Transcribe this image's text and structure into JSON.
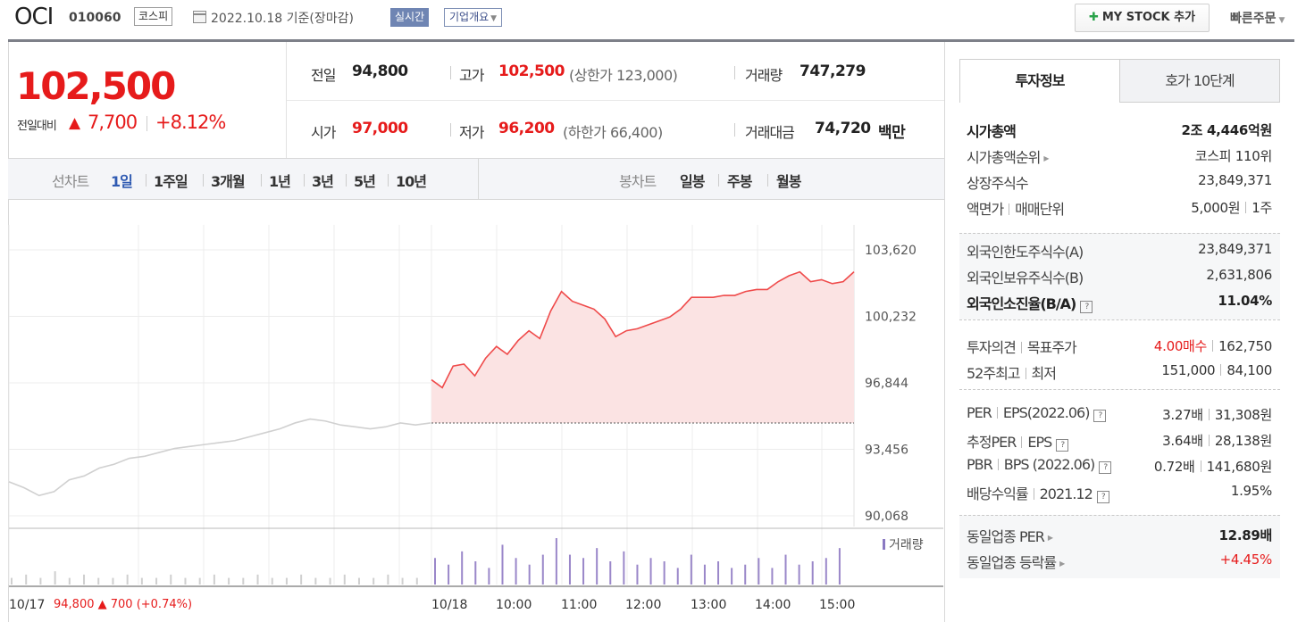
{
  "header": {
    "name": "OCI",
    "code": "010060",
    "market": "코스피",
    "date_text": "2022.10.18  기준(장마감)",
    "realtime_label": "실시간",
    "company_label": "기업개요",
    "mystock_label": "MY STOCK 추가",
    "quick_order_label": "빠른주문"
  },
  "price": {
    "current": "102,500",
    "change_label": "전일대비",
    "change_value": "7,700",
    "change_pct": "+8.12%"
  },
  "quotes": {
    "prev_close_label": "전일",
    "prev_close": "94,800",
    "high_label": "고가",
    "high": "102,500",
    "upper_limit": "(상한가 123,000)",
    "volume_label": "거래량",
    "volume": "747,279",
    "open_label": "시가",
    "open": "97,000",
    "low_label": "저가",
    "low": "96,200",
    "lower_limit": "(하한가 66,400)",
    "amount_label": "거래대금",
    "amount": "74,720",
    "amount_unit": "백만"
  },
  "chart_tabs": {
    "line_label": "선차트",
    "line_tabs": [
      "1일",
      "1주일",
      "3개월",
      "1년",
      "3년",
      "5년",
      "10년"
    ],
    "active_tab": "1일",
    "candle_label": "봉차트",
    "candle_tabs": [
      "일봉",
      "주봉",
      "월봉"
    ]
  },
  "chart_data": {
    "type": "line",
    "yticks": [
      "103,620",
      "100,232",
      "96,844",
      "93,456",
      "90,068"
    ],
    "ylim": [
      90068,
      103620
    ],
    "x_labels": [
      "10/17",
      "10/18",
      "10:00",
      "11:00",
      "12:00",
      "13:00",
      "14:00",
      "15:00"
    ],
    "prev_day_footer": "94,800 ▲ 700 (+0.74%)",
    "volume_legend": "거래량",
    "prev_close_line": 94800,
    "series": [
      {
        "name": "10/17",
        "values": [
          91800,
          91500,
          91100,
          91300,
          91900,
          92100,
          92500,
          92700,
          93000,
          93100,
          93300,
          93500,
          93600,
          93700,
          93800,
          93900,
          94100,
          94300,
          94500,
          94800,
          95000,
          94900,
          94700,
          94600,
          94500,
          94600,
          94800,
          94700,
          94800
        ]
      },
      {
        "name": "10/18",
        "values": [
          97000,
          96600,
          97700,
          97800,
          97200,
          98100,
          98700,
          98300,
          99000,
          99500,
          99100,
          100500,
          101500,
          101000,
          100800,
          100600,
          100100,
          99200,
          99500,
          99600,
          99800,
          100000,
          100200,
          100600,
          101200,
          101200,
          101200,
          101300,
          101300,
          101500,
          101600,
          101600,
          102000,
          102300,
          102500,
          102000,
          102100,
          101900,
          102000,
          102500
        ]
      }
    ],
    "volume": [
      2,
      3,
      2,
      4,
      2,
      3,
      2,
      2,
      3,
      2,
      2,
      3,
      2,
      2,
      3,
      2,
      2,
      3,
      2,
      2,
      3,
      2,
      2,
      3,
      2,
      2,
      3,
      2,
      2,
      8,
      6,
      10,
      7,
      5,
      12,
      8,
      6,
      9,
      14,
      9,
      8,
      11,
      7,
      10,
      6,
      8,
      7,
      5,
      9,
      6,
      7,
      5,
      6,
      8,
      5,
      9,
      6,
      7,
      8,
      11
    ]
  },
  "right_panel": {
    "tab_active": "투자정보",
    "tab_inactive": "호가 10단계",
    "rows1": [
      {
        "label": "시가총액",
        "value": "2조 4,446억원",
        "bold": true
      },
      {
        "label": "시가총액순위",
        "value": "코스피 110위"
      },
      {
        "label": "상장주식수",
        "value": "23,849,371"
      },
      {
        "label": "액면가",
        "label2": "매매단위",
        "value": "5,000원",
        "value2": "1주"
      }
    ],
    "rows2": [
      {
        "label": "외국인한도주식수(A)",
        "value": "23,849,371"
      },
      {
        "label": "외국인보유주식수(B)",
        "value": "2,631,806"
      },
      {
        "label": "외국인소진율(B/A)",
        "value": "11.04%"
      }
    ],
    "rows3": [
      {
        "label": "투자의견",
        "label2": "목표주가",
        "value": "4.00매수",
        "value2": "162,750"
      },
      {
        "label": "52주최고",
        "label2": "최저",
        "value": "151,000",
        "value2": "84,100"
      }
    ],
    "rows4": [
      {
        "label": "PER",
        "label2": "EPS(2022.06)",
        "value": "3.27배",
        "value2": "31,308원"
      },
      {
        "label": "추정PER",
        "label2": "EPS",
        "value": "3.64배",
        "value2": "28,138원"
      },
      {
        "label": "PBR",
        "label2": "BPS (2022.06)",
        "value": "0.72배",
        "value2": "141,680원"
      },
      {
        "label": "배당수익률",
        "label2": "2021.12",
        "value": "1.95%"
      }
    ],
    "rows5": [
      {
        "label": "동일업종 PER",
        "value": "12.89배"
      },
      {
        "label": "동일업종 등락률",
        "value": "+4.45%"
      }
    ],
    "colors": {
      "up": "#e61b1b",
      "accent": "#2f5ab2"
    }
  }
}
